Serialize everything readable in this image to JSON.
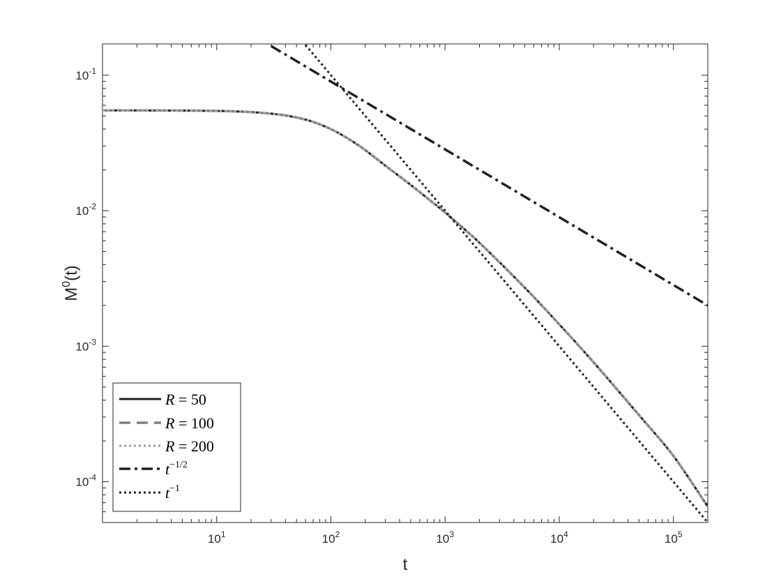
{
  "chart_data": {
    "type": "line",
    "xlabel": "t",
    "ylabel_base": "M",
    "ylabel_sup": "0",
    "ylabel_tail": "(t)",
    "xscale": "log",
    "yscale": "log",
    "xlim": [
      1,
      200000
    ],
    "ylim": [
      5e-05,
      0.17
    ],
    "grid": false,
    "legend_position": "bottom-left",
    "xticks": [
      {
        "value": 10,
        "base": "10",
        "exp": "1"
      },
      {
        "value": 100,
        "base": "10",
        "exp": "2"
      },
      {
        "value": 1000,
        "base": "10",
        "exp": "3"
      },
      {
        "value": 10000,
        "base": "10",
        "exp": "4"
      },
      {
        "value": 100000,
        "base": "10",
        "exp": "5"
      }
    ],
    "yticks": [
      {
        "value": 0.0001,
        "base": "10",
        "exp": "-4"
      },
      {
        "value": 0.001,
        "base": "10",
        "exp": "-3"
      },
      {
        "value": 0.01,
        "base": "10",
        "exp": "-2"
      },
      {
        "value": 0.1,
        "base": "10",
        "exp": "-1"
      }
    ],
    "series": [
      {
        "name_var": "R",
        "name_rel": " = ",
        "name_val": "50",
        "name_sup": "",
        "style": "solid",
        "color": "#202020",
        "width": 3,
        "x": [
          1,
          10,
          30,
          60,
          100,
          150,
          200,
          300,
          500,
          800,
          1000,
          2000,
          5000,
          10000,
          20000,
          50000,
          100000,
          200000
        ],
        "y": [
          0.055,
          0.0545,
          0.052,
          0.047,
          0.04,
          0.033,
          0.028,
          0.0215,
          0.0155,
          0.0113,
          0.0097,
          0.0058,
          0.0027,
          0.00145,
          0.00076,
          0.00031,
          0.000155,
          6.55e-05
        ]
      },
      {
        "name_var": "R",
        "name_rel": " = ",
        "name_val": "100",
        "name_sup": "",
        "style": "dashed",
        "color": "#808080",
        "width": 3.5,
        "x": [
          1,
          10,
          30,
          60,
          100,
          150,
          200,
          300,
          500,
          800,
          1000,
          2000,
          5000,
          10000,
          20000,
          50000,
          100000,
          200000
        ],
        "y": [
          0.055,
          0.0545,
          0.052,
          0.047,
          0.04,
          0.033,
          0.028,
          0.0215,
          0.0155,
          0.0113,
          0.0097,
          0.0058,
          0.0027,
          0.00145,
          0.00076,
          0.00031,
          0.000155,
          6.55e-05
        ]
      },
      {
        "name_var": "R",
        "name_rel": " = ",
        "name_val": "200",
        "name_sup": "",
        "style": "dotted",
        "color": "#a6a6a6",
        "width": 3.5,
        "x": [
          1,
          10,
          30,
          60,
          100,
          150,
          200,
          300,
          500,
          800,
          1000,
          2000,
          5000,
          10000,
          20000,
          50000,
          100000,
          200000
        ],
        "y": [
          0.055,
          0.0545,
          0.052,
          0.047,
          0.04,
          0.033,
          0.028,
          0.0215,
          0.0155,
          0.0113,
          0.0097,
          0.0058,
          0.0027,
          0.00145,
          0.00076,
          0.00031,
          0.000155,
          6.55e-05
        ]
      },
      {
        "name_var": "t",
        "name_rel": "",
        "name_val": "",
        "name_sup": "−1/2",
        "style": "dashdot",
        "color": "#202020",
        "width": 3.5,
        "x": [
          30,
          200000
        ],
        "y": [
          0.164,
          0.002
        ]
      },
      {
        "name_var": "t",
        "name_rel": "",
        "name_val": "",
        "name_sup": "−1",
        "style": "dotted",
        "color": "#202020",
        "width": 3,
        "x": [
          60,
          200000
        ],
        "y": [
          0.167,
          5e-05
        ]
      }
    ]
  }
}
